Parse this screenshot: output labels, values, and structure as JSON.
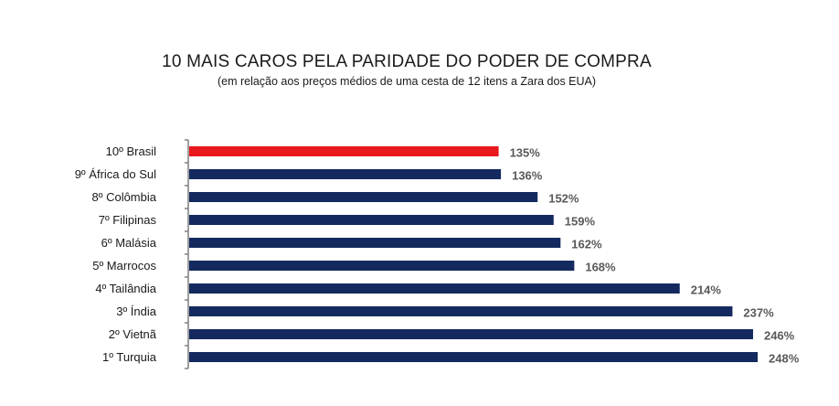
{
  "chart_data": {
    "type": "bar",
    "orientation": "horizontal",
    "title": "10 MAIS CAROS PELA PARIDADE DO PODER DE COMPRA",
    "subtitle": "(em relação aos preços médios de uma cesta de 12 itens a Zara dos EUA)",
    "categories": [
      "10º Brasil",
      "9º África do Sul",
      "8º Colômbia",
      "7º Filipinas",
      "6º Malásia",
      "5º Marrocos",
      "4º Tailândia",
      "3º Índia",
      "2º Vietnã",
      "1º Turquia"
    ],
    "values": [
      135,
      136,
      152,
      159,
      162,
      168,
      214,
      237,
      246,
      248
    ],
    "value_labels": [
      "135%",
      "136%",
      "152%",
      "159%",
      "162%",
      "168%",
      "214%",
      "237%",
      "246%",
      "248%"
    ],
    "colors": [
      "#e8181c",
      "#14295e",
      "#14295e",
      "#14295e",
      "#14295e",
      "#14295e",
      "#14295e",
      "#14295e",
      "#14295e",
      "#14295e"
    ],
    "xlim": [
      0,
      248
    ],
    "grid": false,
    "legend": "none"
  }
}
